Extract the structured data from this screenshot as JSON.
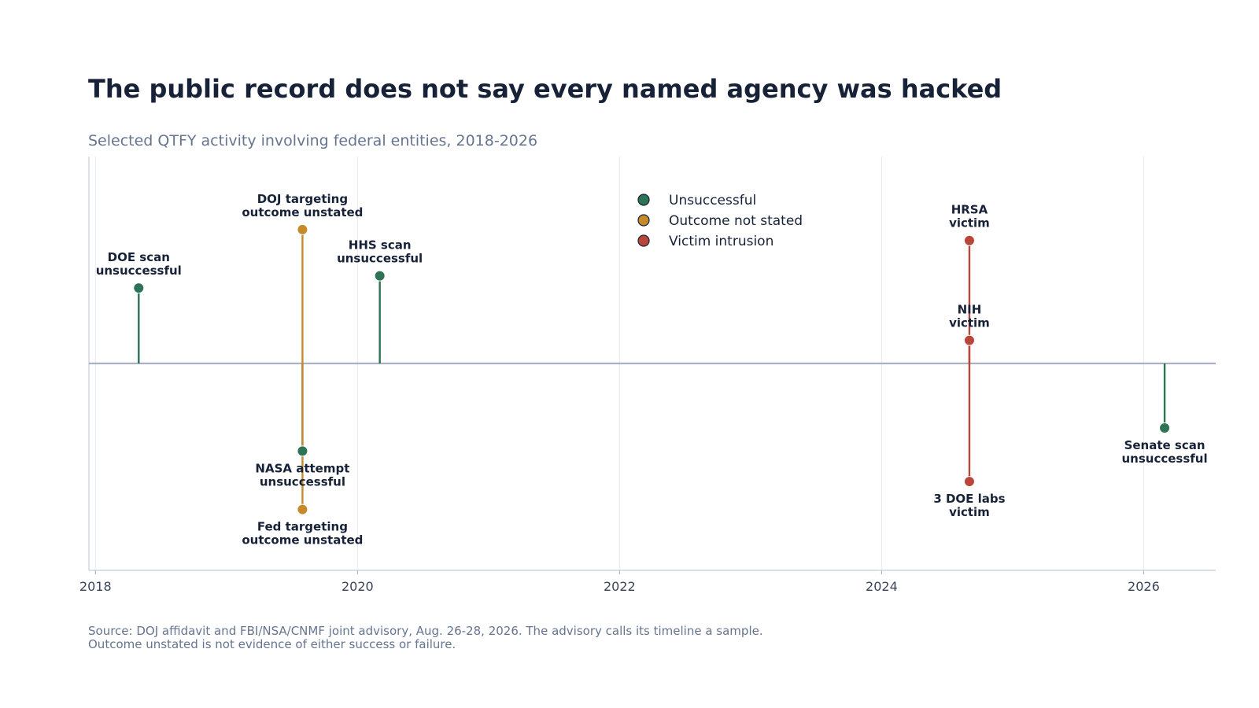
{
  "chart_data": {
    "type": "timeline-stem",
    "title": "The public record does not say every named agency was hacked",
    "subtitle": "Selected QTFY activity involving federal entities, 2018-2026",
    "x_axis": {
      "type": "date",
      "range": [
        2017.95,
        2026.55
      ],
      "ticks": [
        "2018",
        "2020",
        "2022",
        "2024",
        "2026"
      ],
      "tick_values": [
        2018,
        2020,
        2022,
        2024,
        2026
      ],
      "grid": true
    },
    "y_axis": {
      "visible": false,
      "range": [
        -1.7,
        1.7
      ]
    },
    "baseline": 0,
    "categories": [
      {
        "key": "unsuccessful",
        "name": "Unsuccessful",
        "color": "#2d7356"
      },
      {
        "key": "unstated",
        "name": "Outcome not stated",
        "color": "#c68a2b"
      },
      {
        "key": "victim",
        "name": "Victim intrusion",
        "color": "#b9463b"
      }
    ],
    "legend_position": "top-center",
    "events": [
      {
        "x": 2018.33,
        "y": 0.62,
        "category": "unsuccessful",
        "label": [
          "DOE scan",
          "unsuccessful"
        ]
      },
      {
        "x": 2019.58,
        "y": 1.1,
        "category": "unstated",
        "label": [
          "DOJ targeting",
          "outcome unstated"
        ]
      },
      {
        "x": 2019.58,
        "y": -0.72,
        "category": "unsuccessful",
        "label": [
          "NASA attempt",
          "unsuccessful"
        ]
      },
      {
        "x": 2019.58,
        "y": -1.2,
        "category": "unstated",
        "label": [
          "Fed targeting",
          "outcome unstated"
        ]
      },
      {
        "x": 2020.17,
        "y": 0.72,
        "category": "unsuccessful",
        "label": [
          "HHS scan",
          "unsuccessful"
        ]
      },
      {
        "x": 2024.67,
        "y": 1.01,
        "category": "victim",
        "label": [
          "HRSA",
          "victim"
        ]
      },
      {
        "x": 2024.67,
        "y": 0.19,
        "category": "victim",
        "label": [
          "NIH",
          "victim"
        ]
      },
      {
        "x": 2024.67,
        "y": -0.97,
        "category": "victim",
        "label": [
          "3 DOE labs",
          "victim"
        ]
      },
      {
        "x": 2026.16,
        "y": -0.53,
        "category": "unsuccessful",
        "label": [
          "Senate scan",
          "unsuccessful"
        ]
      }
    ],
    "source": [
      "Source: DOJ affidavit and FBI/NSA/CNMF joint advisory, Aug. 26-28, 2026. The advisory calls its timeline a sample.",
      "Outcome unstated is not evidence of either success or failure."
    ]
  }
}
